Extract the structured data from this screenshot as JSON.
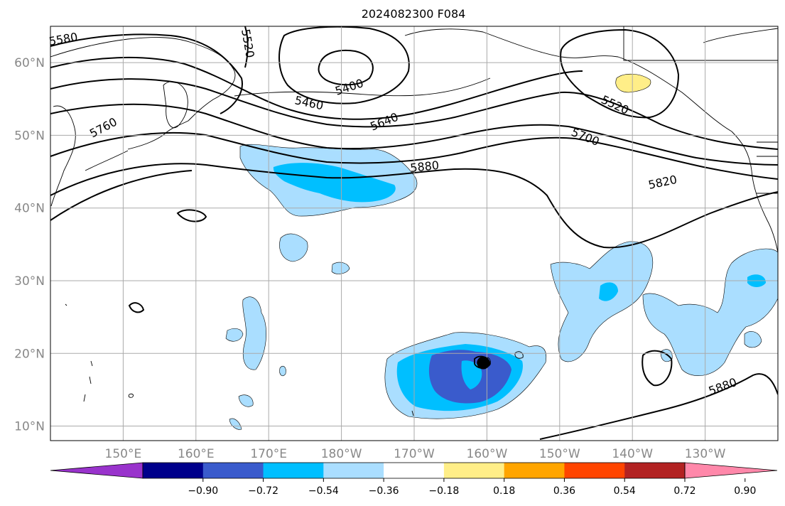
{
  "title": "2024082300 F084",
  "map": {
    "lon_range": [
      140,
      240
    ],
    "lat_range": [
      8,
      65
    ],
    "gridlines": true,
    "lat_ticks": [
      {
        "value": 10,
        "label": "10°N"
      },
      {
        "value": 20,
        "label": "20°N"
      },
      {
        "value": 30,
        "label": "30°N"
      },
      {
        "value": 40,
        "label": "40°N"
      },
      {
        "value": 50,
        "label": "50°N"
      },
      {
        "value": 60,
        "label": "60°N"
      }
    ],
    "lon_ticks": [
      {
        "value": 150,
        "label": "150°E"
      },
      {
        "value": 160,
        "label": "160°E"
      },
      {
        "value": 170,
        "label": "170°E"
      },
      {
        "value": 180,
        "label": "180°W"
      },
      {
        "value": 190,
        "label": "170°W"
      },
      {
        "value": 200,
        "label": "160°W"
      },
      {
        "value": 210,
        "label": "150°W"
      },
      {
        "value": 220,
        "label": "140°W"
      },
      {
        "value": 230,
        "label": "130°W"
      }
    ],
    "contour_labels": [
      "5580",
      "5520",
      "5400",
      "5460",
      "5640",
      "5760",
      "5520",
      "5700",
      "5880",
      "5820",
      "5880"
    ],
    "marker": {
      "lon": 199.5,
      "lat": 18.7
    }
  },
  "colorbar": {
    "colors": [
      "#9933cc",
      "#00008b",
      "#3a5bcc",
      "#00bfff",
      "#aadeff",
      "#ffffff",
      "#ffee88",
      "#ffa500",
      "#ff4500",
      "#b22222",
      "#ff88aa"
    ],
    "ticks": [
      "−0.90",
      "−0.72",
      "−0.54",
      "−0.36",
      "−0.18",
      "0.18",
      "0.36",
      "0.54",
      "0.72",
      "0.90"
    ]
  },
  "colors": {
    "contour": "#000000",
    "grid": "#aaaaaa",
    "coast": "#000000"
  }
}
